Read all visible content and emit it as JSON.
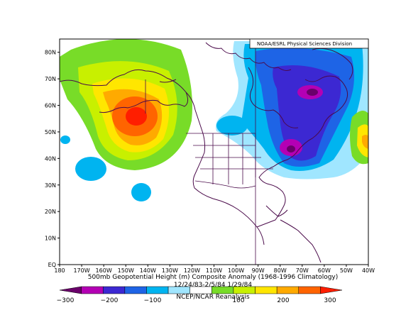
{
  "map": {
    "credit": "NOAA/ESRL Physical Sciences Division",
    "title": "500mb Geopotential Height (m) Composite Anomaly (1968-1996 Climatology)",
    "dates": "12/24/83-2/5/84 1/29/84",
    "source": "NCEP/NCAR Reanalysis",
    "lat_ticks": [
      "80N",
      "70N",
      "60N",
      "50N",
      "40N",
      "30N",
      "20N",
      "10N",
      "EQ"
    ],
    "lon_ticks": [
      "180",
      "170W",
      "160W",
      "150W",
      "140W",
      "130W",
      "120W",
      "110W",
      "100W",
      "90W",
      "80W",
      "70W",
      "60W",
      "50W",
      "40W"
    ]
  },
  "colorbar": {
    "colors": [
      "#6a006a",
      "#b400b4",
      "#3c28d2",
      "#1e64e6",
      "#00b4f0",
      "#a0e6ff",
      "#ffffff",
      "#78dc28",
      "#c8f000",
      "#ffe600",
      "#ffaa00",
      "#ff6400",
      "#ff1e00"
    ],
    "labels": [
      "−300",
      "−200",
      "−100",
      "",
      "100",
      "200",
      "300"
    ]
  },
  "anomalies": [
    {
      "type": "positive",
      "center_lon": -145,
      "center_lat": 53,
      "max": 300
    },
    {
      "type": "negative",
      "center_lon": -70,
      "center_lat": 63,
      "min": -300
    },
    {
      "type": "negative",
      "center_lon": -70,
      "center_lat": 45,
      "min": -300
    }
  ]
}
